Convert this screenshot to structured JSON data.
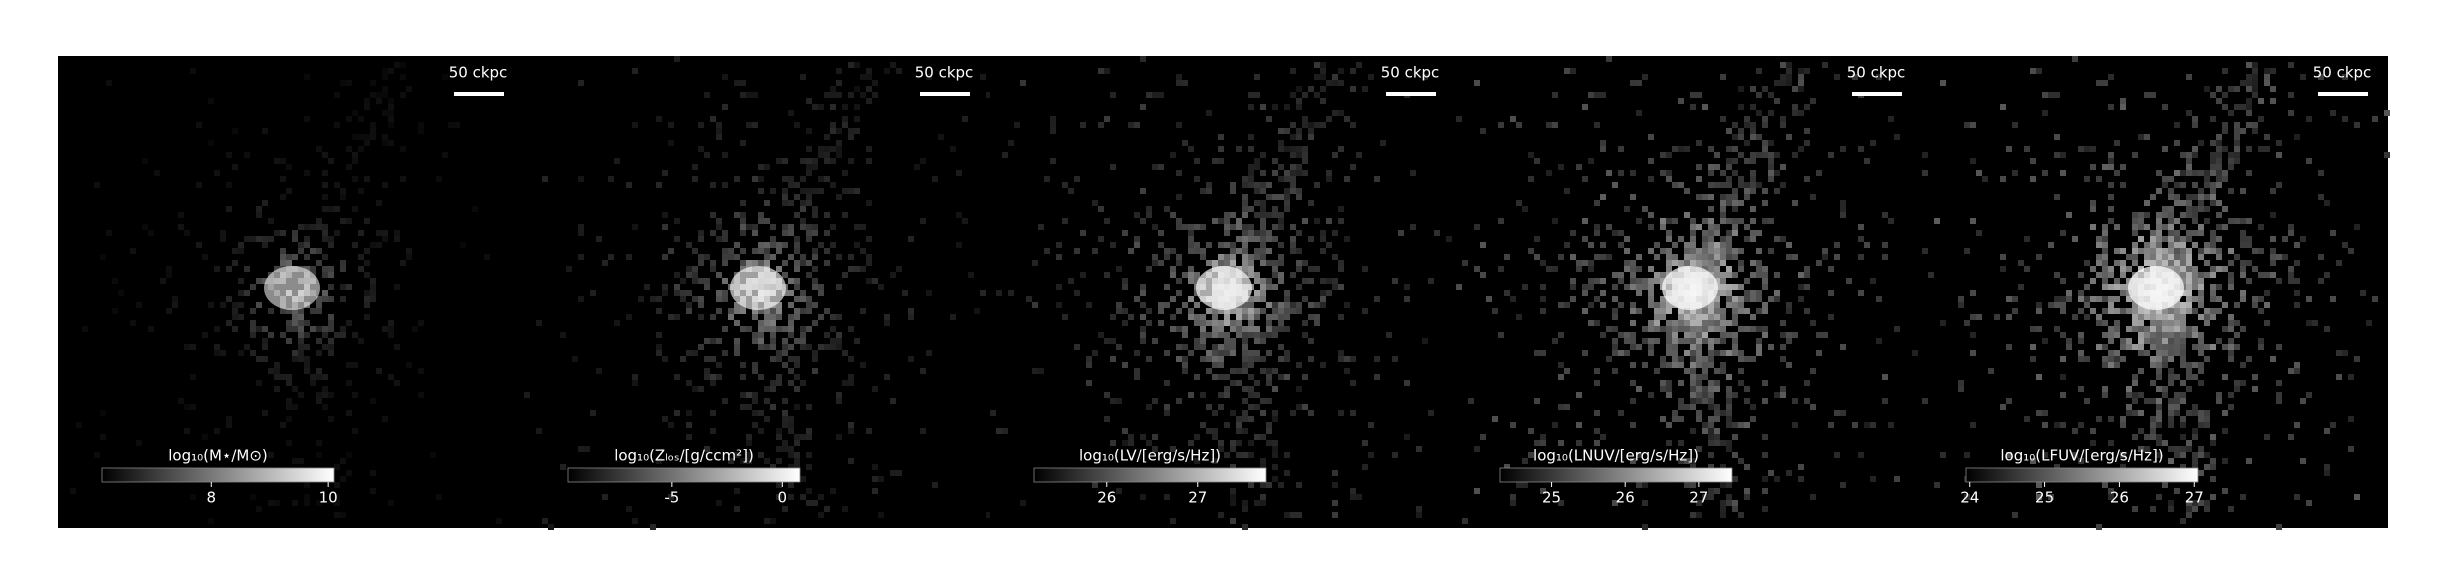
{
  "chart_data": [
    {
      "type": "image",
      "scale_label": "50 ckpc",
      "colorbar_label": "log₁₀(M⋆/M⊙)",
      "clim": [
        6.13,
        10.1
      ],
      "cticks": [
        8,
        10
      ]
    },
    {
      "type": "image",
      "scale_label": "50 ckpc",
      "colorbar_label": "log₁₀(Zₗₒₛ/[g/ccm²])",
      "clim": [
        -9.7,
        0.8
      ],
      "cticks": [
        -5,
        0
      ]
    },
    {
      "type": "image",
      "scale_label": "50 ckpc",
      "colorbar_label": "log₁₀(LV/[erg/s/Hz])",
      "clim": [
        25.2,
        27.75
      ],
      "cticks": [
        26,
        27
      ]
    },
    {
      "type": "image",
      "scale_label": "50 ckpc",
      "colorbar_label": "log₁₀(LNUV/[erg/s/Hz])",
      "clim": [
        24.3,
        27.45
      ],
      "cticks": [
        25,
        26,
        27
      ]
    },
    {
      "type": "image",
      "scale_label": "50 ckpc",
      "colorbar_label": "log₁₀(LFUV/[erg/s/Hz])",
      "clim": [
        23.95,
        27.05
      ],
      "cticks": [
        24,
        25,
        26,
        27
      ]
    }
  ]
}
